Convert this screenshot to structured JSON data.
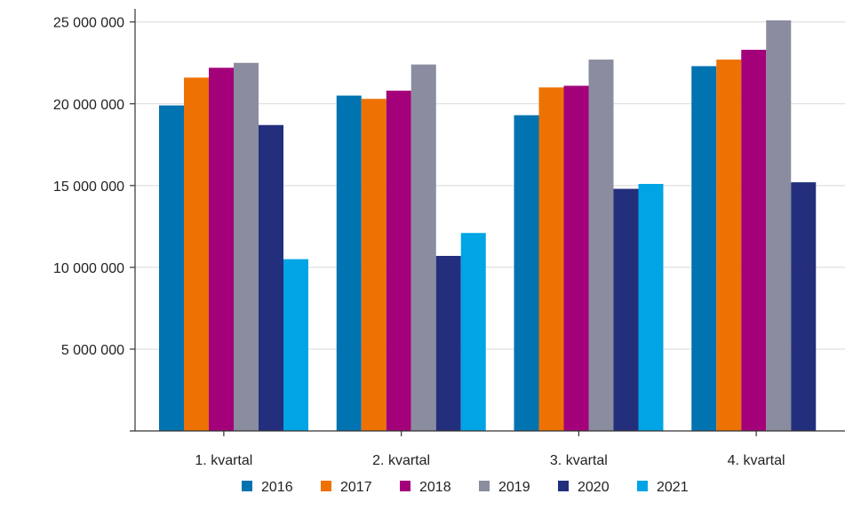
{
  "chart_data": {
    "type": "bar",
    "title": "",
    "xlabel": "",
    "ylabel": "",
    "categories": [
      "1. kvartal",
      "2. kvartal",
      "3. kvartal",
      "4. kvartal"
    ],
    "ylim": [
      0,
      25800000
    ],
    "yticks": [
      5000000,
      10000000,
      15000000,
      20000000,
      25000000
    ],
    "ytick_labels": [
      "5 000 000",
      "10 000 000",
      "15 000 000",
      "20 000 000",
      "25 000 000"
    ],
    "grid": true,
    "legend": "bottom",
    "series": [
      {
        "name": "2016",
        "color": "#0073b0",
        "values": [
          19900000,
          20500000,
          19300000,
          22300000
        ]
      },
      {
        "name": "2017",
        "color": "#ee7203",
        "values": [
          21600000,
          20300000,
          21000000,
          22700000
        ]
      },
      {
        "name": "2018",
        "color": "#a3007a",
        "values": [
          22200000,
          20800000,
          21100000,
          23300000
        ]
      },
      {
        "name": "2019",
        "color": "#8a8c9f",
        "values": [
          22500000,
          22400000,
          22700000,
          25100000
        ]
      },
      {
        "name": "2020",
        "color": "#232f7c",
        "values": [
          18700000,
          10700000,
          14800000,
          15200000
        ]
      },
      {
        "name": "2021",
        "color": "#00a5e6",
        "values": [
          10500000,
          12100000,
          15100000,
          null
        ]
      }
    ]
  }
}
